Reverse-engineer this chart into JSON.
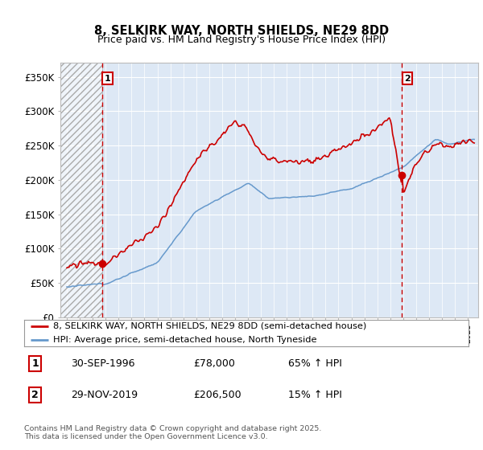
{
  "title_line1": "8, SELKIRK WAY, NORTH SHIELDS, NE29 8DD",
  "title_line2": "Price paid vs. HM Land Registry's House Price Index (HPI)",
  "legend_property": "8, SELKIRK WAY, NORTH SHIELDS, NE29 8DD (semi-detached house)",
  "legend_hpi": "HPI: Average price, semi-detached house, North Tyneside",
  "sale1_date": "30-SEP-1996",
  "sale1_price": "£78,000",
  "sale1_hpi": "65% ↑ HPI",
  "sale1_year": 1996.75,
  "sale1_value": 78000,
  "sale2_date": "29-NOV-2019",
  "sale2_price": "£206,500",
  "sale2_hpi": "15% ↑ HPI",
  "sale2_year": 2019.917,
  "sale2_value": 206500,
  "yticks": [
    0,
    50000,
    100000,
    150000,
    200000,
    250000,
    300000,
    350000
  ],
  "ytick_labels": [
    "£0",
    "£50K",
    "£100K",
    "£150K",
    "£200K",
    "£250K",
    "£300K",
    "£350K"
  ],
  "xmin": 1993.5,
  "xmax": 2025.8,
  "ymin": 0,
  "ymax": 370000,
  "hatch_xmax": 1996.75,
  "property_color": "#cc0000",
  "hpi_color": "#6699cc",
  "background_color": "#dde8f5",
  "hatch_color": "#bbbbbb",
  "grid_color": "#ffffff",
  "footnote": "Contains HM Land Registry data © Crown copyright and database right 2025.\nThis data is licensed under the Open Government Licence v3.0."
}
